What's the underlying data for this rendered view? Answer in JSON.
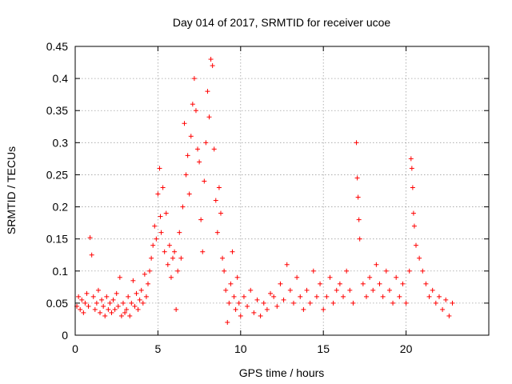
{
  "chart_data": {
    "type": "scatter",
    "title": "Day 014 of 2017, SRMTID for receiver ucoe",
    "xlabel": "GPS time / hours",
    "ylabel": "SRMTID / TECUs",
    "xlim": [
      0,
      25
    ],
    "ylim": [
      0,
      0.45
    ],
    "xticks": [
      0,
      5,
      10,
      15,
      20
    ],
    "xtick_labels": [
      "0",
      "5",
      "10",
      "15",
      "20"
    ],
    "yticks": [
      0,
      0.05,
      0.1,
      0.15,
      0.2,
      0.25,
      0.3,
      0.35,
      0.4,
      0.45
    ],
    "ytick_labels": [
      "0",
      "0.05",
      "0.1",
      "0.15",
      "0.2",
      "0.25",
      "0.3",
      "0.35",
      "0.4",
      "0.45"
    ],
    "grid": true,
    "marker": "+",
    "color": "#ff0000",
    "series": [
      {
        "name": "SRMTID",
        "points": [
          [
            0.1,
            0.045
          ],
          [
            0.2,
            0.06
          ],
          [
            0.3,
            0.04
          ],
          [
            0.4,
            0.055
          ],
          [
            0.5,
            0.035
          ],
          [
            0.6,
            0.05
          ],
          [
            0.7,
            0.065
          ],
          [
            0.8,
            0.045
          ],
          [
            0.9,
            0.152
          ],
          [
            1.0,
            0.125
          ],
          [
            1.1,
            0.06
          ],
          [
            1.2,
            0.04
          ],
          [
            1.3,
            0.05
          ],
          [
            1.4,
            0.07
          ],
          [
            1.5,
            0.035
          ],
          [
            1.6,
            0.055
          ],
          [
            1.7,
            0.045
          ],
          [
            1.8,
            0.03
          ],
          [
            1.9,
            0.06
          ],
          [
            2.0,
            0.04
          ],
          [
            2.1,
            0.05
          ],
          [
            2.2,
            0.035
          ],
          [
            2.3,
            0.055
          ],
          [
            2.4,
            0.04
          ],
          [
            2.5,
            0.065
          ],
          [
            2.6,
            0.045
          ],
          [
            2.7,
            0.09
          ],
          [
            2.8,
            0.03
          ],
          [
            2.9,
            0.05
          ],
          [
            3.0,
            0.035
          ],
          [
            3.1,
            0.04
          ],
          [
            3.2,
            0.06
          ],
          [
            3.3,
            0.03
          ],
          [
            3.4,
            0.05
          ],
          [
            3.5,
            0.085
          ],
          [
            3.6,
            0.045
          ],
          [
            3.7,
            0.065
          ],
          [
            3.8,
            0.04
          ],
          [
            3.9,
            0.055
          ],
          [
            4.0,
            0.07
          ],
          [
            4.1,
            0.05
          ],
          [
            4.2,
            0.095
          ],
          [
            4.3,
            0.06
          ],
          [
            4.4,
            0.08
          ],
          [
            4.5,
            0.1
          ],
          [
            4.6,
            0.12
          ],
          [
            4.7,
            0.14
          ],
          [
            4.8,
            0.17
          ],
          [
            4.9,
            0.15
          ],
          [
            5.0,
            0.22
          ],
          [
            5.1,
            0.26
          ],
          [
            5.15,
            0.185
          ],
          [
            5.2,
            0.16
          ],
          [
            5.3,
            0.23
          ],
          [
            5.4,
            0.13
          ],
          [
            5.5,
            0.19
          ],
          [
            5.6,
            0.11
          ],
          [
            5.7,
            0.14
          ],
          [
            5.8,
            0.09
          ],
          [
            5.9,
            0.12
          ],
          [
            6.0,
            0.13
          ],
          [
            6.1,
            0.04
          ],
          [
            6.2,
            0.1
          ],
          [
            6.3,
            0.16
          ],
          [
            6.4,
            0.12
          ],
          [
            6.5,
            0.2
          ],
          [
            6.6,
            0.33
          ],
          [
            6.7,
            0.25
          ],
          [
            6.8,
            0.28
          ],
          [
            6.9,
            0.22
          ],
          [
            7.0,
            0.31
          ],
          [
            7.1,
            0.36
          ],
          [
            7.2,
            0.4
          ],
          [
            7.3,
            0.35
          ],
          [
            7.4,
            0.29
          ],
          [
            7.5,
            0.27
          ],
          [
            7.6,
            0.18
          ],
          [
            7.7,
            0.13
          ],
          [
            7.8,
            0.24
          ],
          [
            7.9,
            0.3
          ],
          [
            8.0,
            0.38
          ],
          [
            8.1,
            0.34
          ],
          [
            8.2,
            0.43
          ],
          [
            8.3,
            0.42
          ],
          [
            8.4,
            0.29
          ],
          [
            8.5,
            0.21
          ],
          [
            8.6,
            0.16
          ],
          [
            8.7,
            0.23
          ],
          [
            8.8,
            0.19
          ],
          [
            8.9,
            0.12
          ],
          [
            9.0,
            0.1
          ],
          [
            9.1,
            0.07
          ],
          [
            9.2,
            0.02
          ],
          [
            9.3,
            0.05
          ],
          [
            9.4,
            0.08
          ],
          [
            9.5,
            0.13
          ],
          [
            9.6,
            0.06
          ],
          [
            9.7,
            0.04
          ],
          [
            9.8,
            0.09
          ],
          [
            9.9,
            0.05
          ],
          [
            10.0,
            0.03
          ],
          [
            10.2,
            0.06
          ],
          [
            10.4,
            0.045
          ],
          [
            10.6,
            0.07
          ],
          [
            10.8,
            0.035
          ],
          [
            11.0,
            0.055
          ],
          [
            11.2,
            0.03
          ],
          [
            11.4,
            0.05
          ],
          [
            11.6,
            0.04
          ],
          [
            11.8,
            0.065
          ],
          [
            12.0,
            0.06
          ],
          [
            12.2,
            0.045
          ],
          [
            12.4,
            0.08
          ],
          [
            12.6,
            0.055
          ],
          [
            12.8,
            0.11
          ],
          [
            13.0,
            0.07
          ],
          [
            13.2,
            0.05
          ],
          [
            13.4,
            0.09
          ],
          [
            13.6,
            0.06
          ],
          [
            13.8,
            0.04
          ],
          [
            14.0,
            0.07
          ],
          [
            14.2,
            0.05
          ],
          [
            14.4,
            0.1
          ],
          [
            14.6,
            0.06
          ],
          [
            14.8,
            0.08
          ],
          [
            15.0,
            0.04
          ],
          [
            15.2,
            0.06
          ],
          [
            15.4,
            0.09
          ],
          [
            15.6,
            0.05
          ],
          [
            15.8,
            0.07
          ],
          [
            16.0,
            0.08
          ],
          [
            16.2,
            0.06
          ],
          [
            16.4,
            0.1
          ],
          [
            16.6,
            0.07
          ],
          [
            16.8,
            0.05
          ],
          [
            17.0,
            0.3
          ],
          [
            17.05,
            0.245
          ],
          [
            17.1,
            0.215
          ],
          [
            17.15,
            0.18
          ],
          [
            17.2,
            0.15
          ],
          [
            17.4,
            0.08
          ],
          [
            17.6,
            0.06
          ],
          [
            17.8,
            0.09
          ],
          [
            18.0,
            0.07
          ],
          [
            18.2,
            0.11
          ],
          [
            18.4,
            0.08
          ],
          [
            18.6,
            0.06
          ],
          [
            18.8,
            0.1
          ],
          [
            19.0,
            0.07
          ],
          [
            19.2,
            0.05
          ],
          [
            19.4,
            0.09
          ],
          [
            19.6,
            0.06
          ],
          [
            19.8,
            0.08
          ],
          [
            20.0,
            0.05
          ],
          [
            20.2,
            0.1
          ],
          [
            20.3,
            0.275
          ],
          [
            20.35,
            0.26
          ],
          [
            20.4,
            0.23
          ],
          [
            20.45,
            0.19
          ],
          [
            20.5,
            0.17
          ],
          [
            20.6,
            0.14
          ],
          [
            20.8,
            0.12
          ],
          [
            21.0,
            0.1
          ],
          [
            21.2,
            0.08
          ],
          [
            21.4,
            0.06
          ],
          [
            21.6,
            0.07
          ],
          [
            21.8,
            0.05
          ],
          [
            22.0,
            0.06
          ],
          [
            22.2,
            0.04
          ],
          [
            22.4,
            0.055
          ],
          [
            22.6,
            0.03
          ],
          [
            22.8,
            0.05
          ]
        ]
      }
    ]
  }
}
